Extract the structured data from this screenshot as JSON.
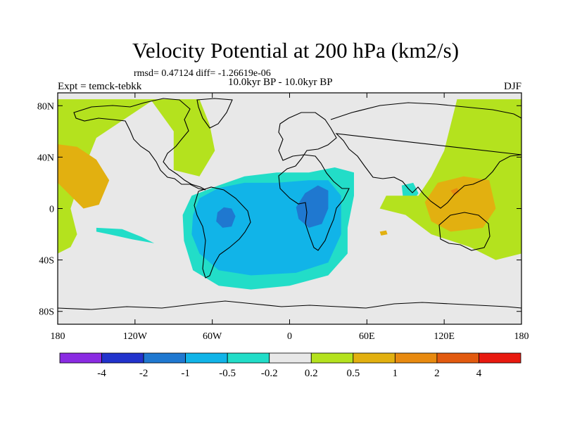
{
  "chart_data": {
    "type": "heatmap",
    "title": "Velocity Potential at 200 hPa (km2/s)",
    "stats_line": "rmsd= 0.47124 diff= -1.26619e-06",
    "experiment_label": "Expt = temck-tebkk",
    "period_label": "10.0kyr BP - 10.0kyr BP",
    "season_label": "DJF",
    "x_axis": {
      "range": [
        -180,
        180
      ],
      "ticks": [
        {
          "value": -180,
          "label": "180"
        },
        {
          "value": -120,
          "label": "120W"
        },
        {
          "value": -60,
          "label": "60W"
        },
        {
          "value": 0,
          "label": "0"
        },
        {
          "value": 60,
          "label": "60E"
        },
        {
          "value": 120,
          "label": "120E"
        },
        {
          "value": 180,
          "label": "180"
        }
      ]
    },
    "y_axis": {
      "range": [
        -90,
        90
      ],
      "ticks": [
        {
          "value": 80,
          "label": "80N"
        },
        {
          "value": 40,
          "label": "40N"
        },
        {
          "value": 0,
          "label": "0"
        },
        {
          "value": -40,
          "label": "40S"
        },
        {
          "value": -80,
          "label": "80S"
        }
      ]
    },
    "colorbar": {
      "boundary_labels": [
        "-4",
        "-2",
        "-1",
        "-0.5",
        "-0.2",
        "0.2",
        "0.5",
        "1",
        "2",
        "4"
      ],
      "colors": [
        "#8a2be2",
        "#2233cc",
        "#1f78d0",
        "#11b4e8",
        "#22ddc8",
        "#e8e8e8",
        "#b4e21e",
        "#e2b010",
        "#e88a10",
        "#e25a0f",
        "#e8190f"
      ]
    },
    "regions": [
      {
        "name": "tropical-atlantic-negative",
        "level": "-0.2 to -0.5",
        "polygon_lonlat": [
          [
            -83,
            -5
          ],
          [
            -76,
            10
          ],
          [
            -55,
            18
          ],
          [
            -35,
            25
          ],
          [
            -10,
            28
          ],
          [
            15,
            28
          ],
          [
            35,
            32
          ],
          [
            50,
            28
          ],
          [
            50,
            10
          ],
          [
            45,
            -15
          ],
          [
            45,
            -35
          ],
          [
            30,
            -52
          ],
          [
            0,
            -60
          ],
          [
            -30,
            -63
          ],
          [
            -55,
            -60
          ],
          [
            -75,
            -48
          ],
          [
            -82,
            -25
          ]
        ],
        "color": "#22ddc8"
      },
      {
        "name": "tropical-atlantic-negative",
        "level": "-0.5 to -1",
        "polygon_lonlat": [
          [
            -75,
            -5
          ],
          [
            -70,
            8
          ],
          [
            -55,
            16
          ],
          [
            -35,
            20
          ],
          [
            -10,
            20
          ],
          [
            15,
            22
          ],
          [
            30,
            22
          ],
          [
            40,
            10
          ],
          [
            40,
            -20
          ],
          [
            30,
            -42
          ],
          [
            5,
            -50
          ],
          [
            -30,
            -52
          ],
          [
            -55,
            -48
          ],
          [
            -70,
            -35
          ],
          [
            -76,
            -20
          ]
        ],
        "color": "#11b4e8"
      },
      {
        "name": "south-america-core",
        "level": "-1 to -2",
        "polygon_lonlat": [
          [
            -56,
            -3
          ],
          [
            -51,
            1
          ],
          [
            -45,
            0
          ],
          [
            -42,
            -6
          ],
          [
            -45,
            -14
          ],
          [
            -52,
            -15
          ],
          [
            -57,
            -10
          ]
        ],
        "color": "#1f78d0"
      },
      {
        "name": "africa-core",
        "level": "-1 to -2",
        "polygon_lonlat": [
          [
            5,
            1
          ],
          [
            12,
            12
          ],
          [
            22,
            18
          ],
          [
            30,
            14
          ],
          [
            30,
            0
          ],
          [
            25,
            -12
          ],
          [
            15,
            -15
          ],
          [
            7,
            -8
          ]
        ],
        "color": "#1f78d0"
      },
      {
        "name": "south-pacific-patch",
        "level": "-0.2 to -0.5",
        "polygon_lonlat": [
          [
            -150,
            -15
          ],
          [
            -130,
            -16
          ],
          [
            -115,
            -22
          ],
          [
            -105,
            -27
          ],
          [
            -122,
            -24
          ],
          [
            -140,
            -20
          ],
          [
            -150,
            -18
          ]
        ],
        "color": "#22ddc8"
      },
      {
        "name": "indian-patch",
        "level": "-0.2 to -0.5",
        "polygon_lonlat": [
          [
            87,
            18
          ],
          [
            96,
            20
          ],
          [
            100,
            12
          ],
          [
            96,
            6
          ],
          [
            88,
            9
          ]
        ],
        "color": "#22ddc8"
      },
      {
        "name": "pacific-positive",
        "level": "0.2 to 0.5",
        "polygon_lonlat": [
          [
            -180,
            85
          ],
          [
            -180,
            -35
          ],
          [
            -170,
            -30
          ],
          [
            -165,
            -20
          ],
          [
            -170,
            0
          ],
          [
            -160,
            30
          ],
          [
            -150,
            55
          ],
          [
            -120,
            75
          ],
          [
            -105,
            85
          ]
        ],
        "color": "#b4e21e"
      },
      {
        "name": "north-america-positive",
        "level": "0.2 to 0.5",
        "polygon_lonlat": [
          [
            -108,
            85
          ],
          [
            -90,
            60
          ],
          [
            -90,
            30
          ],
          [
            -70,
            25
          ],
          [
            -58,
            45
          ],
          [
            -62,
            65
          ],
          [
            -70,
            85
          ]
        ],
        "color": "#b4e21e"
      },
      {
        "name": "asia-positive",
        "level": "0.2 to 0.5",
        "polygon_lonlat": [
          [
            180,
            85
          ],
          [
            180,
            -35
          ],
          [
            160,
            -40
          ],
          [
            140,
            -30
          ],
          [
            110,
            -20
          ],
          [
            90,
            -5
          ],
          [
            70,
            0
          ],
          [
            75,
            10
          ],
          [
            100,
            10
          ],
          [
            110,
            25
          ],
          [
            120,
            45
          ],
          [
            125,
            65
          ],
          [
            130,
            85
          ]
        ],
        "color": "#b4e21e"
      },
      {
        "name": "pacific-core",
        "level": "0.5 to 1",
        "polygon_lonlat": [
          [
            -180,
            50
          ],
          [
            -180,
            20
          ],
          [
            -160,
            0
          ],
          [
            -148,
            3
          ],
          [
            -140,
            22
          ],
          [
            -150,
            38
          ],
          [
            -165,
            48
          ]
        ],
        "color": "#e2b010"
      },
      {
        "name": "west-pacific-core",
        "level": "0.5 to 1",
        "polygon_lonlat": [
          [
            155,
            22
          ],
          [
            135,
            25
          ],
          [
            115,
            20
          ],
          [
            105,
            5
          ],
          [
            110,
            -10
          ],
          [
            125,
            -18
          ],
          [
            150,
            -15
          ],
          [
            160,
            0
          ]
        ],
        "color": "#e2b010"
      },
      {
        "name": "west-pacific-peak",
        "level": "1 to 2",
        "polygon_lonlat": [
          [
            125,
            14
          ],
          [
            130,
            16
          ],
          [
            132,
            13
          ],
          [
            128,
            10
          ]
        ],
        "color": "#e88a10"
      },
      {
        "name": "indian-ocean-peak",
        "level": "0.5 to 1",
        "polygon_lonlat": [
          [
            70,
            -18
          ],
          [
            75,
            -17
          ],
          [
            76,
            -20
          ],
          [
            71,
            -21
          ]
        ],
        "color": "#e2b010"
      }
    ],
    "colormap": "NCL-like diverging blue-cyan-grey-green-orange-red"
  }
}
